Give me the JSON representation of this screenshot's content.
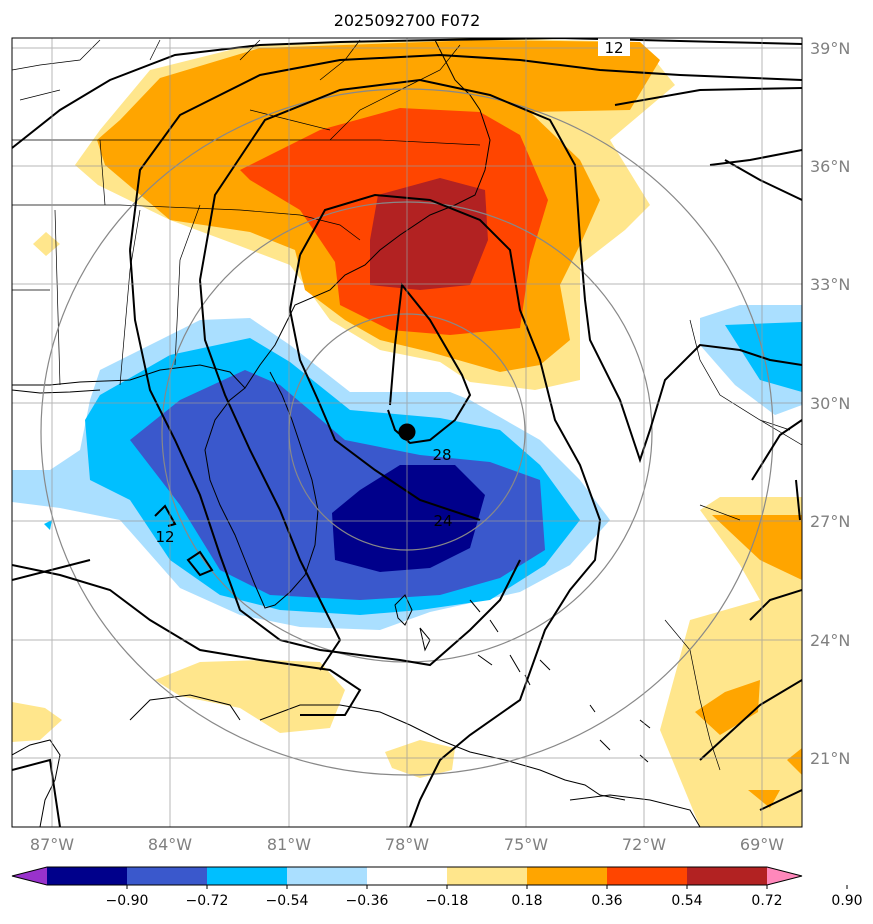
{
  "title": "2025092700 F072",
  "chart_data": {
    "type": "map",
    "title": "2025092700 F072",
    "lon_labels": [
      "87°W",
      "84°W",
      "81°W",
      "78°W",
      "75°W",
      "72°W",
      "69°W"
    ],
    "lat_labels": [
      "39°N",
      "36°N",
      "33°N",
      "30°N",
      "27°N",
      "24°N",
      "21°N"
    ],
    "lon_range": [
      -88,
      -68
    ],
    "lat_range": [
      19,
      39.2
    ],
    "center_marker": {
      "lon": -77.9,
      "lat": 29.2
    },
    "contour_labels": [
      "12",
      "28",
      "24",
      "12"
    ],
    "colorbar": {
      "ticks": [
        "−0.90",
        "−0.72",
        "−0.54",
        "−0.36",
        "−0.18",
        "0.18",
        "0.36",
        "0.54",
        "0.72",
        "0.90"
      ],
      "colors": [
        "#9932cc",
        "#00008b",
        "#3a58cc",
        "#00bfff",
        "#aadfff",
        "#ffffff",
        "#ffe68c",
        "#ffa500",
        "#ff4500",
        "#b22222",
        "#ff88bb"
      ]
    }
  }
}
